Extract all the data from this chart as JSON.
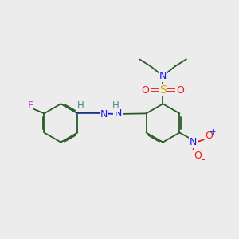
{
  "bg_color": "#ececec",
  "bond_color": "#2a5c2a",
  "bond_width": 1.3,
  "F_color": "#cc44cc",
  "N_color": "#1a1aee",
  "S_color": "#ccaa00",
  "O_color": "#ee1a1a",
  "H_color": "#4a8888",
  "figsize": [
    3.0,
    3.0
  ],
  "dpi": 100,
  "xlim": [
    0,
    10
  ],
  "ylim": [
    0,
    10
  ]
}
